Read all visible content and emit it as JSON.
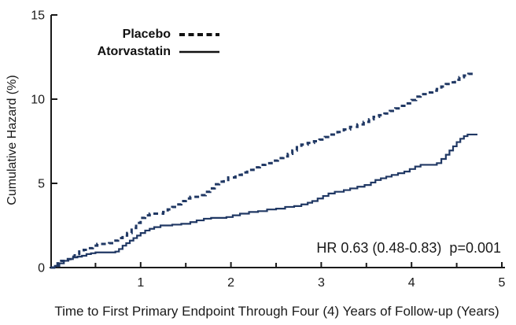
{
  "figure": {
    "background": "#ffffff",
    "axis_color": "#1a1a1a",
    "text_color": "#1a1a1a",
    "curve_color": "#203864",
    "legend_line_color": "#111111"
  },
  "legend": {
    "items": [
      {
        "label": "Placebo",
        "style": "dashed"
      },
      {
        "label": "Atorvastatin",
        "style": "solid"
      }
    ]
  },
  "annotation": "HR 0.63 (0.48-0.83)  p=0.001",
  "chart_data": {
    "type": "line",
    "subtype": "step-after-cumulative-hazard",
    "title": "",
    "xlabel": "Time to First Primary Endpoint Through Four (4) Years of Follow-up (Years)",
    "ylabel": "Cumulative Hazard (%)",
    "xlim": [
      0,
      5
    ],
    "ylim": [
      0,
      15
    ],
    "x_major_ticks": [
      1,
      2,
      3,
      4,
      5
    ],
    "x_minor_ticks": [
      0.5,
      1.5,
      2.5,
      3.5,
      4.5
    ],
    "y_ticks": [
      0,
      5,
      10,
      15
    ],
    "grid": false,
    "legend_position": "upper-left-inside",
    "annotation": "HR 0.63 (0.48-0.83)  p=0.001",
    "series": [
      {
        "name": "Placebo",
        "style": "dashed",
        "points": [
          [
            0,
            0
          ],
          [
            0.04,
            0.1
          ],
          [
            0.08,
            0.25
          ],
          [
            0.12,
            0.4
          ],
          [
            0.17,
            0.5
          ],
          [
            0.22,
            0.65
          ],
          [
            0.27,
            0.8
          ],
          [
            0.32,
            0.95
          ],
          [
            0.37,
            1.05
          ],
          [
            0.42,
            1.15
          ],
          [
            0.47,
            1.3
          ],
          [
            0.52,
            1.4
          ],
          [
            0.65,
            1.45
          ],
          [
            0.7,
            1.6
          ],
          [
            0.75,
            1.75
          ],
          [
            0.8,
            1.9
          ],
          [
            0.85,
            2.05
          ],
          [
            0.9,
            2.35
          ],
          [
            0.95,
            2.65
          ],
          [
            1.0,
            2.95
          ],
          [
            1.05,
            3.1
          ],
          [
            1.1,
            3.2
          ],
          [
            1.25,
            3.3
          ],
          [
            1.3,
            3.45
          ],
          [
            1.35,
            3.6
          ],
          [
            1.4,
            3.75
          ],
          [
            1.45,
            3.95
          ],
          [
            1.5,
            4.1
          ],
          [
            1.55,
            4.2
          ],
          [
            1.68,
            4.3
          ],
          [
            1.72,
            4.5
          ],
          [
            1.77,
            4.7
          ],
          [
            1.82,
            4.95
          ],
          [
            1.87,
            5.1
          ],
          [
            1.92,
            5.2
          ],
          [
            1.97,
            5.35
          ],
          [
            2.05,
            5.5
          ],
          [
            2.12,
            5.65
          ],
          [
            2.18,
            5.8
          ],
          [
            2.25,
            5.95
          ],
          [
            2.32,
            6.1
          ],
          [
            2.38,
            6.2
          ],
          [
            2.45,
            6.35
          ],
          [
            2.52,
            6.5
          ],
          [
            2.58,
            6.6
          ],
          [
            2.63,
            6.75
          ],
          [
            2.68,
            6.95
          ],
          [
            2.73,
            7.15
          ],
          [
            2.78,
            7.3
          ],
          [
            2.85,
            7.4
          ],
          [
            2.92,
            7.5
          ],
          [
            2.98,
            7.6
          ],
          [
            3.04,
            7.75
          ],
          [
            3.1,
            7.9
          ],
          [
            3.18,
            8.05
          ],
          [
            3.25,
            8.2
          ],
          [
            3.32,
            8.35
          ],
          [
            3.4,
            8.5
          ],
          [
            3.47,
            8.65
          ],
          [
            3.53,
            8.8
          ],
          [
            3.58,
            8.95
          ],
          [
            3.64,
            9.05
          ],
          [
            3.7,
            9.15
          ],
          [
            3.76,
            9.3
          ],
          [
            3.82,
            9.45
          ],
          [
            3.88,
            9.6
          ],
          [
            3.94,
            9.75
          ],
          [
            4.0,
            9.95
          ],
          [
            4.05,
            10.15
          ],
          [
            4.1,
            10.3
          ],
          [
            4.17,
            10.4
          ],
          [
            4.23,
            10.5
          ],
          [
            4.28,
            10.6
          ],
          [
            4.33,
            10.75
          ],
          [
            4.38,
            10.9
          ],
          [
            4.43,
            11.0
          ],
          [
            4.48,
            11.15
          ],
          [
            4.53,
            11.3
          ],
          [
            4.58,
            11.4
          ],
          [
            4.63,
            11.5
          ],
          [
            4.7,
            11.55
          ]
        ]
      },
      {
        "name": "Atorvastatin",
        "style": "solid",
        "points": [
          [
            0,
            0
          ],
          [
            0.05,
            0.1
          ],
          [
            0.1,
            0.25
          ],
          [
            0.15,
            0.4
          ],
          [
            0.2,
            0.5
          ],
          [
            0.25,
            0.6
          ],
          [
            0.3,
            0.65
          ],
          [
            0.35,
            0.7
          ],
          [
            0.4,
            0.8
          ],
          [
            0.45,
            0.85
          ],
          [
            0.5,
            0.9
          ],
          [
            0.72,
            0.95
          ],
          [
            0.76,
            1.1
          ],
          [
            0.8,
            1.3
          ],
          [
            0.84,
            1.45
          ],
          [
            0.88,
            1.6
          ],
          [
            0.92,
            1.75
          ],
          [
            0.96,
            1.9
          ],
          [
            1.0,
            2.05
          ],
          [
            1.05,
            2.2
          ],
          [
            1.1,
            2.3
          ],
          [
            1.15,
            2.4
          ],
          [
            1.22,
            2.5
          ],
          [
            1.35,
            2.55
          ],
          [
            1.45,
            2.6
          ],
          [
            1.55,
            2.7
          ],
          [
            1.62,
            2.8
          ],
          [
            1.7,
            2.9
          ],
          [
            1.78,
            2.95
          ],
          [
            1.95,
            3.0
          ],
          [
            2.02,
            3.1
          ],
          [
            2.1,
            3.2
          ],
          [
            2.2,
            3.3
          ],
          [
            2.3,
            3.35
          ],
          [
            2.4,
            3.45
          ],
          [
            2.5,
            3.5
          ],
          [
            2.6,
            3.6
          ],
          [
            2.7,
            3.65
          ],
          [
            2.78,
            3.75
          ],
          [
            2.85,
            3.85
          ],
          [
            2.9,
            3.95
          ],
          [
            2.96,
            4.1
          ],
          [
            3.02,
            4.25
          ],
          [
            3.08,
            4.4
          ],
          [
            3.15,
            4.5
          ],
          [
            3.25,
            4.6
          ],
          [
            3.32,
            4.7
          ],
          [
            3.4,
            4.8
          ],
          [
            3.48,
            4.9
          ],
          [
            3.55,
            5.05
          ],
          [
            3.6,
            5.2
          ],
          [
            3.66,
            5.3
          ],
          [
            3.72,
            5.4
          ],
          [
            3.78,
            5.5
          ],
          [
            3.85,
            5.6
          ],
          [
            3.92,
            5.7
          ],
          [
            3.98,
            5.85
          ],
          [
            4.04,
            6.0
          ],
          [
            4.1,
            6.1
          ],
          [
            4.28,
            6.2
          ],
          [
            4.33,
            6.45
          ],
          [
            4.38,
            6.7
          ],
          [
            4.42,
            6.95
          ],
          [
            4.46,
            7.2
          ],
          [
            4.5,
            7.45
          ],
          [
            4.54,
            7.65
          ],
          [
            4.58,
            7.8
          ],
          [
            4.62,
            7.9
          ],
          [
            4.72,
            7.95
          ]
        ]
      }
    ]
  }
}
